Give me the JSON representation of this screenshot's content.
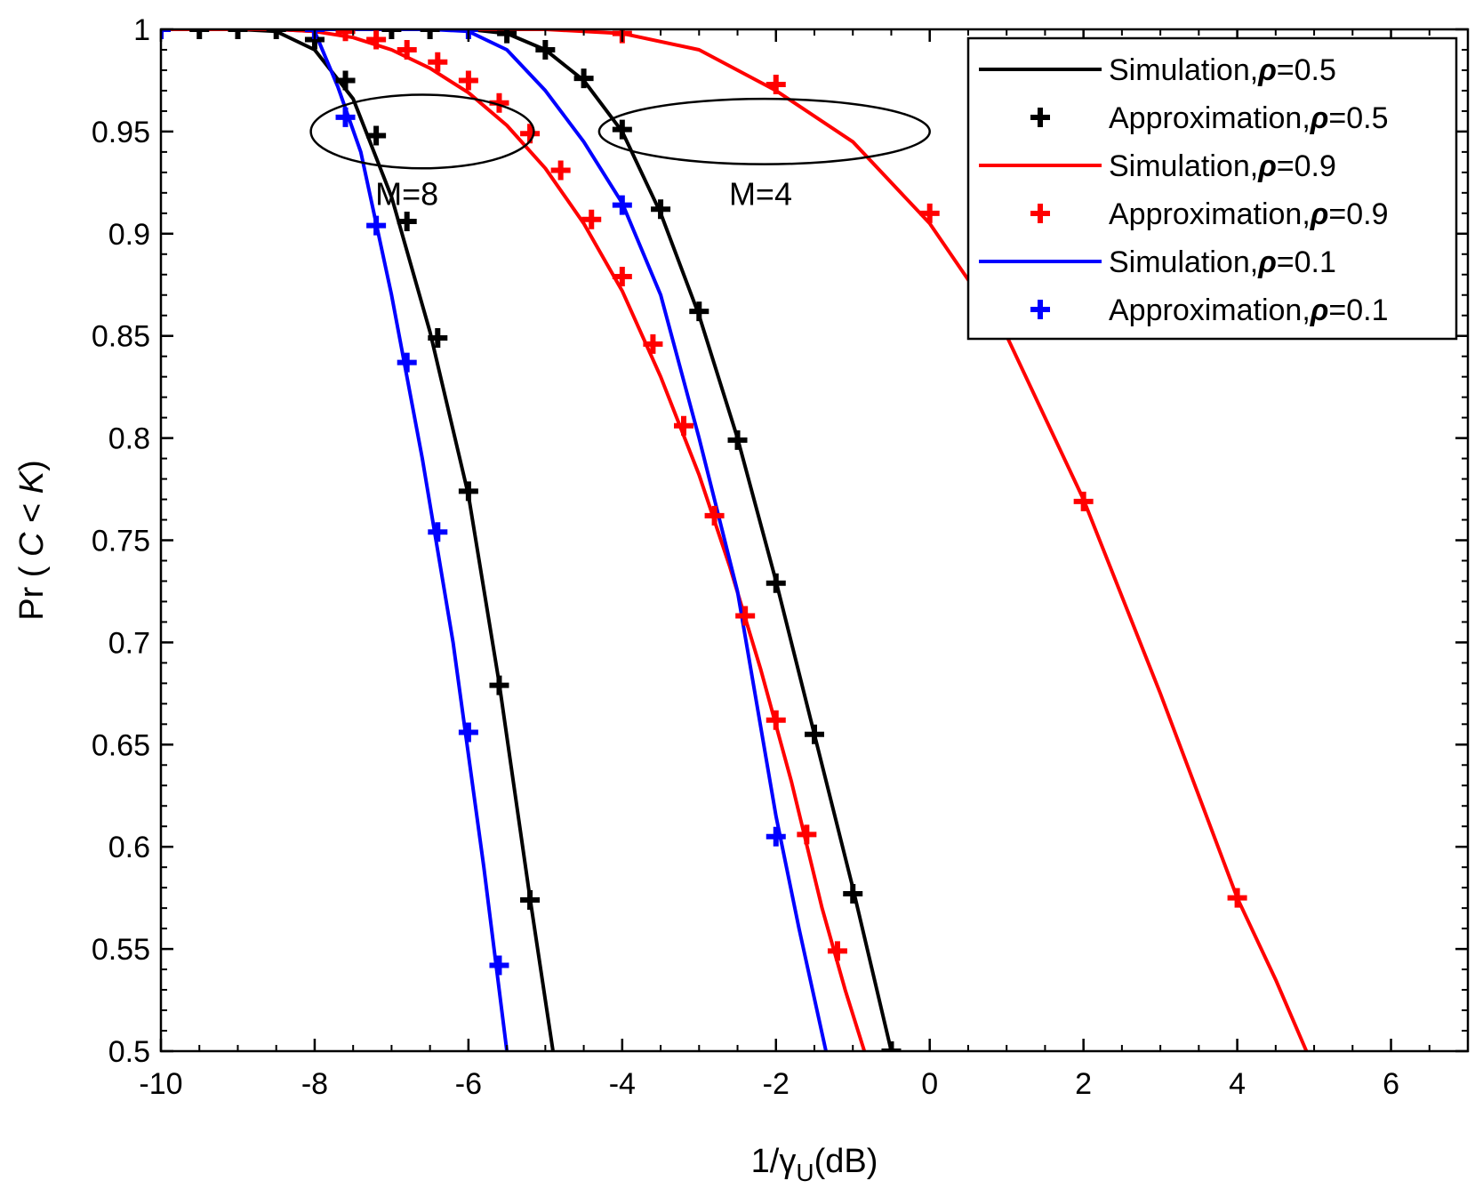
{
  "chart_data": {
    "type": "line",
    "title": "",
    "xlabel": "1/γU(dB)",
    "xlabel_parts": {
      "prefix": "1/γ",
      "subscript": "U",
      "suffix": "(dB)"
    },
    "ylabel": "Pr ( C < K)",
    "ylabel_parts": {
      "prefix": "Pr ( ",
      "var1": "C",
      "mid": " < ",
      "var2": "K",
      "suffix": ")"
    },
    "xlim": [
      -10,
      7
    ],
    "ylim": [
      0.5,
      1.0
    ],
    "xticks": [
      -10,
      -8,
      -6,
      -4,
      -2,
      0,
      2,
      4,
      6
    ],
    "xtick_labels": [
      "-10",
      "-8",
      "-6",
      "-4",
      "-2",
      "0",
      "2",
      "4",
      "6"
    ],
    "yticks": [
      0.5,
      0.55,
      0.6,
      0.65,
      0.7,
      0.75,
      0.8,
      0.85,
      0.9,
      0.95,
      1.0
    ],
    "ytick_labels": [
      "0.5",
      "0.55",
      "0.6",
      "0.65",
      "0.7",
      "0.75",
      "0.8",
      "0.85",
      "0.9",
      "0.95",
      "1"
    ],
    "legend_position": "top-right",
    "colors": {
      "black": "#000000",
      "red": "#ff0000",
      "blue": "#0000ff"
    },
    "annotations": [
      {
        "label": "M=8",
        "ellipse_center": [
          -6.6,
          0.95
        ],
        "ellipse_radii": [
          1.45,
          0.018
        ]
      },
      {
        "label": "M=4",
        "ellipse_center": [
          -2.15,
          0.95
        ],
        "ellipse_radii": [
          2.15,
          0.016
        ]
      }
    ],
    "series": [
      {
        "name": "Simulation,ρ=0.5",
        "group": "M=8",
        "kind": "line",
        "color": "#000000",
        "x": [
          -10,
          -9,
          -8.5,
          -8,
          -7.5,
          -7,
          -6.5,
          -6,
          -5.6,
          -5.2,
          -4.9
        ],
        "y": [
          1.0,
          1.0,
          0.999,
          0.99,
          0.966,
          0.918,
          0.852,
          0.772,
          0.68,
          0.575,
          0.5
        ]
      },
      {
        "name": "Approximation,ρ=0.5",
        "group": "M=8",
        "kind": "markers",
        "color": "#000000",
        "x": [
          -10,
          -9.5,
          -9,
          -8.5,
          -8,
          -7.6,
          -7.2,
          -6.8,
          -6.4,
          -6,
          -5.6,
          -5.2
        ],
        "y": [
          1.0,
          1.0,
          1.0,
          1.0,
          0.995,
          0.975,
          0.948,
          0.906,
          0.849,
          0.774,
          0.679,
          0.574
        ]
      },
      {
        "name": "Simulation,ρ=0.1",
        "group": "M=8",
        "kind": "line",
        "color": "#0000ff",
        "x": [
          -10,
          -9,
          -8.5,
          -8,
          -7.7,
          -7.4,
          -7,
          -6.6,
          -6.2,
          -5.8,
          -5.5
        ],
        "y": [
          1.0,
          1.0,
          1.0,
          0.999,
          0.972,
          0.94,
          0.87,
          0.79,
          0.7,
          0.59,
          0.5
        ]
      },
      {
        "name": "Approximation,ρ=0.1",
        "group": "M=8",
        "kind": "markers",
        "color": "#0000ff",
        "x": [
          -10,
          -8,
          -7.6,
          -7.2,
          -6.8,
          -6.4,
          -6,
          -5.6
        ],
        "y": [
          1.0,
          1.0,
          0.957,
          0.904,
          0.837,
          0.754,
          0.656,
          0.542
        ]
      },
      {
        "name": "Simulation,ρ=0.9",
        "group": "M=8",
        "kind": "line",
        "color": "#ff0000",
        "x": [
          -10,
          -9,
          -8.5,
          -8,
          -7.5,
          -7,
          -6.5,
          -6,
          -5.5,
          -5,
          -4.5,
          -4,
          -3.5,
          -3,
          -2.6,
          -2.2,
          -1.8,
          -1.4,
          -1.1,
          -0.85
        ],
        "y": [
          1.0,
          1.0,
          1.0,
          0.999,
          0.996,
          0.99,
          0.981,
          0.969,
          0.953,
          0.932,
          0.905,
          0.872,
          0.83,
          0.782,
          0.737,
          0.687,
          0.632,
          0.57,
          0.53,
          0.5
        ]
      },
      {
        "name": "Approximation,ρ=0.9",
        "group": "M=8",
        "kind": "markers",
        "color": "#ff0000",
        "x": [
          -7.6,
          -7.2,
          -6.8,
          -6.4,
          -6,
          -5.6,
          -5.2,
          -4.8,
          -4.4,
          -4,
          -3.6,
          -3.2,
          -2.8,
          -2.4,
          -2,
          -1.6,
          -1.2
        ],
        "y": [
          0.999,
          0.995,
          0.99,
          0.984,
          0.975,
          0.964,
          0.949,
          0.931,
          0.907,
          0.879,
          0.846,
          0.806,
          0.762,
          0.713,
          0.662,
          0.606,
          0.549
        ]
      },
      {
        "name": "Simulation,ρ=0.5",
        "group": "M=4",
        "kind": "line",
        "color": "#000000",
        "x": [
          -8.5,
          -8,
          -7,
          -6,
          -5.5,
          -5,
          -4.5,
          -4,
          -3.5,
          -3,
          -2.5,
          -2,
          -1.5,
          -1,
          -0.5
        ],
        "y": [
          1.0,
          1.0,
          1.0,
          1.0,
          0.998,
          0.99,
          0.975,
          0.95,
          0.91,
          0.86,
          0.8,
          0.73,
          0.655,
          0.58,
          0.5
        ]
      },
      {
        "name": "Approximation,ρ=0.5",
        "group": "M=4",
        "kind": "markers",
        "color": "#000000",
        "x": [
          -7,
          -6.5,
          -5.5,
          -5,
          -4.5,
          -4,
          -3.5,
          -3,
          -2.5,
          -2,
          -1.5,
          -1,
          -0.5
        ],
        "y": [
          1.0,
          1.0,
          0.998,
          0.99,
          0.976,
          0.951,
          0.912,
          0.862,
          0.799,
          0.729,
          0.655,
          0.577,
          0.5
        ]
      },
      {
        "name": "Simulation,ρ=0.1",
        "group": "M=4",
        "kind": "line",
        "color": "#0000ff",
        "x": [
          -8,
          -7,
          -6.5,
          -6,
          -5.5,
          -5,
          -4.5,
          -4,
          -3.5,
          -3,
          -2.5,
          -2,
          -1.7,
          -1.35
        ],
        "y": [
          1.0,
          1.0,
          1.0,
          0.999,
          0.99,
          0.97,
          0.945,
          0.915,
          0.87,
          0.8,
          0.725,
          0.615,
          0.56,
          0.5
        ]
      },
      {
        "name": "Approximation,ρ=0.1",
        "group": "M=4",
        "kind": "markers",
        "color": "#0000ff",
        "x": [
          -6,
          -4,
          -2
        ],
        "y": [
          1.0,
          0.914,
          0.605
        ]
      },
      {
        "name": "Simulation,ρ=0.9",
        "group": "M=4",
        "kind": "line",
        "color": "#ff0000",
        "x": [
          -6,
          -5,
          -4,
          -3,
          -2,
          -1,
          0,
          1,
          2,
          3,
          4,
          4.5,
          4.9
        ],
        "y": [
          1.0,
          1.0,
          0.998,
          0.99,
          0.97,
          0.945,
          0.905,
          0.85,
          0.77,
          0.675,
          0.575,
          0.535,
          0.5
        ]
      },
      {
        "name": "Approximation,ρ=0.9",
        "group": "M=4",
        "kind": "markers",
        "color": "#ff0000",
        "x": [
          -4,
          -2,
          0,
          2,
          4
        ],
        "y": [
          0.998,
          0.973,
          0.91,
          0.769,
          0.575
        ]
      }
    ],
    "legend": [
      {
        "label": "Simulation,ρ=0.5",
        "kind": "line",
        "color": "#000000",
        "prefix": "Simulation,",
        "symbol": "ρ",
        "value": "=0.5"
      },
      {
        "label": "Approximation,ρ=0.5",
        "kind": "marker",
        "color": "#000000",
        "prefix": "Approximation,",
        "symbol": "ρ",
        "value": "=0.5"
      },
      {
        "label": "Simulation,ρ=0.9",
        "kind": "line",
        "color": "#ff0000",
        "prefix": "Simulation,",
        "symbol": "ρ",
        "value": "=0.9"
      },
      {
        "label": "Approximation,ρ=0.9",
        "kind": "marker",
        "color": "#ff0000",
        "prefix": "Approximation,",
        "symbol": "ρ",
        "value": "=0.9"
      },
      {
        "label": "Simulation,ρ=0.1",
        "kind": "line",
        "color": "#0000ff",
        "prefix": "Simulation,",
        "symbol": "ρ",
        "value": "=0.1"
      },
      {
        "label": "Approximation,ρ=0.1",
        "kind": "marker",
        "color": "#0000ff",
        "prefix": "Approximation,",
        "symbol": "ρ",
        "value": "=0.1"
      }
    ]
  }
}
